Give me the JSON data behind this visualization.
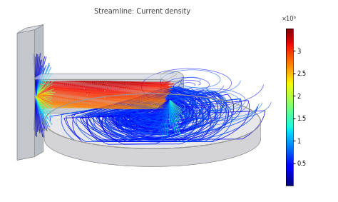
{
  "title": "Streamline: Current density",
  "title_fontsize": 7,
  "title_color": "#444444",
  "bg_color": "#ffffff",
  "colorbar_ticks": [
    0.5,
    1.0,
    1.5,
    2.0,
    2.5,
    3.0
  ],
  "colorbar_tick_labels": [
    "0.5",
    "1",
    "1.5",
    "2",
    "2.5",
    "3"
  ],
  "colorbar_exponent": "×10⁶",
  "colormap": "jet",
  "disk_color": "#d4d4d8",
  "disk_rim_color": "#b8b8bc",
  "disk_top_color": "#e8e8ec",
  "disk_edge_color": "#999999",
  "bar_color": "#c8cdd4",
  "bar_top_color": "#dde0e6",
  "bar_right_color": "#b8bdc4",
  "wall_color": "#c4c8cc",
  "wall_top_color": "#d8dce0",
  "cyl_color": "#c0c4cc",
  "figsize": [
    4.74,
    2.83
  ],
  "dpi": 100
}
